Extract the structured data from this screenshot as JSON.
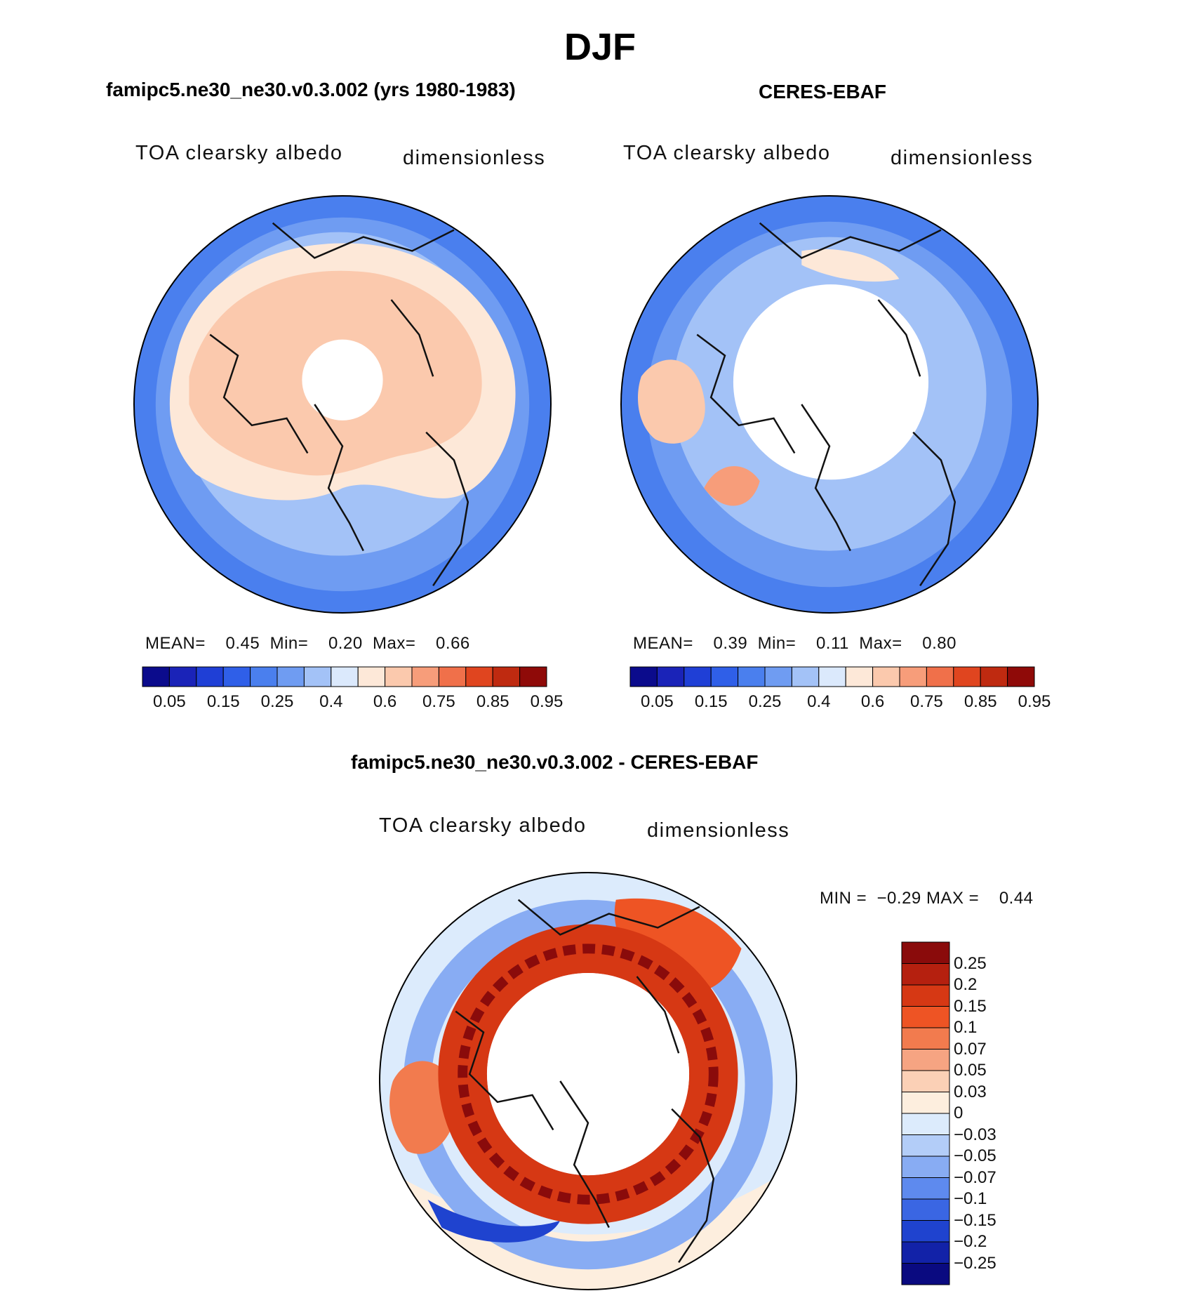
{
  "figure": {
    "season": "DJF",
    "panels": [
      {
        "case": "famipc5.ne30_ne30.v0.3.002 (yrs 1980-1983)",
        "variable": "TOA clearsky albedo",
        "units": "dimensionless",
        "stats": {
          "mean_label": "MEAN=",
          "mean": "0.45",
          "min_label": "Min=",
          "min": "0.20",
          "max_label": "Max=",
          "max": "0.66"
        },
        "colorbar": {
          "colors": [
            "#0b0b8c",
            "#1a23b8",
            "#1f3fd6",
            "#2f5fe8",
            "#4a7fee",
            "#6f9cf2",
            "#a3c2f7",
            "#dbe9fc",
            "#fde8d8",
            "#fbc9ad",
            "#f79d7a",
            "#f0704a",
            "#e0451f",
            "#bf2a10",
            "#8f0a08"
          ],
          "tick_labels": [
            "0.05",
            "0.15",
            "0.25",
            "0.4",
            "0.6",
            "0.75",
            "0.85",
            "0.95"
          ]
        }
      },
      {
        "case": "CERES-EBAF",
        "variable": "TOA clearsky albedo",
        "units": "dimensionless",
        "stats": {
          "mean_label": "MEAN=",
          "mean": "0.39",
          "min_label": "Min=",
          "min": "0.11",
          "max_label": "Max=",
          "max": "0.80"
        },
        "colorbar": {
          "colors": [
            "#0b0b8c",
            "#1a23b8",
            "#1f3fd6",
            "#2f5fe8",
            "#4a7fee",
            "#6f9cf2",
            "#a3c2f7",
            "#dbe9fc",
            "#fde8d8",
            "#fbc9ad",
            "#f79d7a",
            "#f0704a",
            "#e0451f",
            "#bf2a10",
            "#8f0a08"
          ],
          "tick_labels": [
            "0.05",
            "0.15",
            "0.25",
            "0.4",
            "0.6",
            "0.75",
            "0.85",
            "0.95"
          ]
        }
      },
      {
        "case": "famipc5.ne30_ne30.v0.3.002 - CERES-EBAF",
        "variable": "TOA clearsky albedo",
        "units": "dimensionless",
        "stats": {
          "min_label": "MIN =",
          "min": "−0.29",
          "max_label": "MAX =",
          "max": "0.44"
        },
        "colorbar": {
          "colors": [
            "#8a0b0b",
            "#b5200f",
            "#d63814",
            "#ee5424",
            "#f27b4e",
            "#f6a482",
            "#fbd0b6",
            "#fdeede",
            "#dcebfc",
            "#b3cdf8",
            "#88acf3",
            "#5e8aee",
            "#3a66e3",
            "#1f43cf",
            "#1222a8",
            "#0a0a80"
          ],
          "tick_labels": [
            "0.25",
            "0.2",
            "0.15",
            "0.1",
            "0.07",
            "0.05",
            "0.03",
            "0",
            "−0.03",
            "−0.05",
            "−0.07",
            "−0.1",
            "−0.15",
            "−0.2",
            "−0.25"
          ]
        }
      }
    ]
  }
}
